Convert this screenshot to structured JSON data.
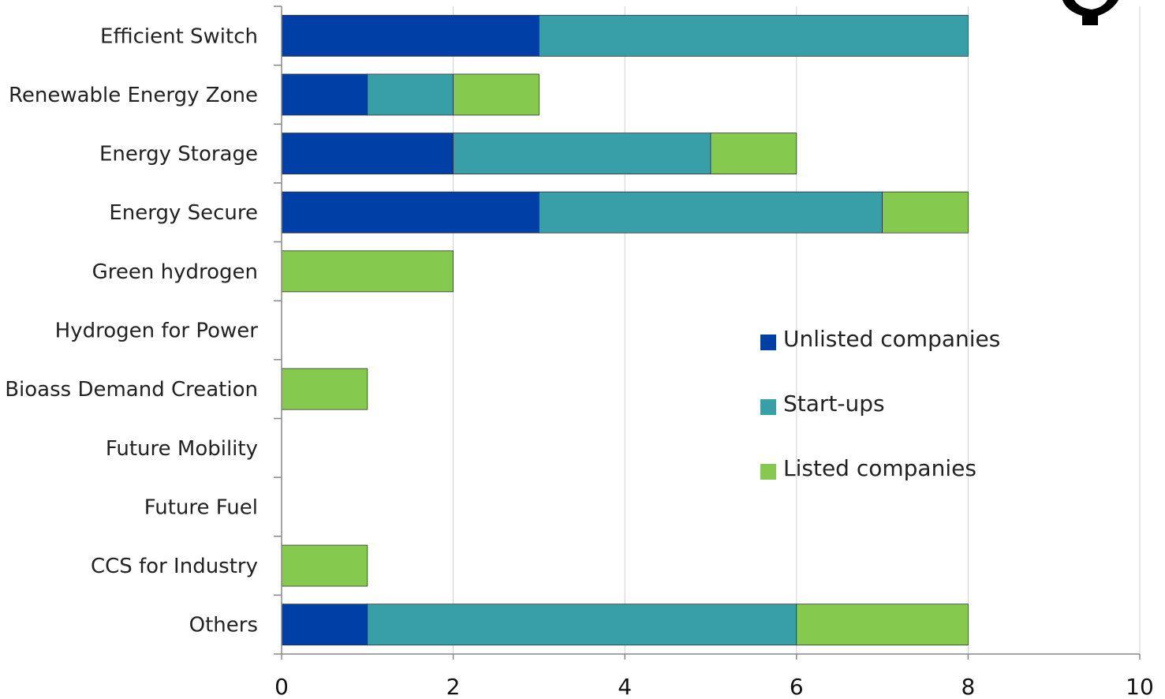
{
  "chart_data": {
    "type": "bar",
    "orientation": "horizontal",
    "stacked": true,
    "categories": [
      "Efficient Switch",
      "Renewable Energy Zone",
      "Energy Storage",
      "Energy Secure",
      "Green hydrogen",
      "Hydrogen for Power",
      "Bioass Demand Creation",
      "Future Mobility",
      "Future Fuel",
      "CCS for Industry",
      "Others"
    ],
    "series": [
      {
        "name": "Unlisted companies",
        "color": "#003fa5",
        "values": [
          3,
          1,
          2,
          3,
          0,
          0,
          0,
          0,
          0,
          0,
          1
        ]
      },
      {
        "name": "Start-ups",
        "color": "#389fa9",
        "values": [
          5,
          1,
          3,
          4,
          0,
          0,
          0,
          0,
          0,
          0,
          5
        ]
      },
      {
        "name": "Listed companies",
        "color": "#86c94f",
        "values": [
          0,
          1,
          1,
          1,
          2,
          0,
          1,
          0,
          0,
          1,
          2
        ]
      }
    ],
    "xlim": [
      0,
      10
    ],
    "xticks": [
      "0",
      "2",
      "4",
      "6",
      "8",
      "10"
    ],
    "grid": "vertical",
    "legend_position": "right",
    "title": "",
    "xlabel": "",
    "ylabel": ""
  },
  "logo_icon": "partial-tree-logo-icon"
}
